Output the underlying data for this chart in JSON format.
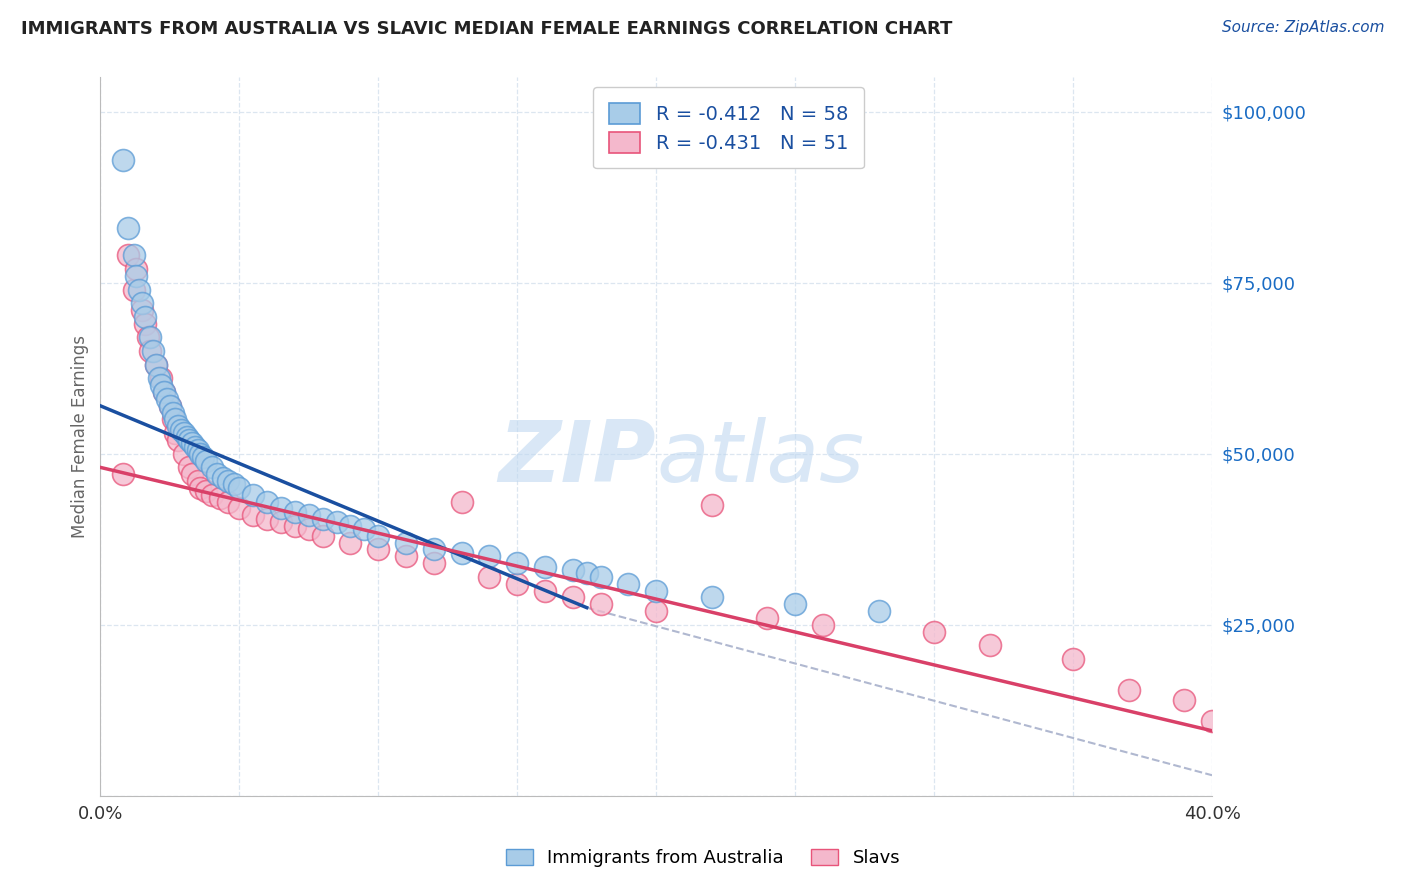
{
  "title": "IMMIGRANTS FROM AUSTRALIA VS SLAVIC MEDIAN FEMALE EARNINGS CORRELATION CHART",
  "source": "Source: ZipAtlas.com",
  "ylabel": "Median Female Earnings",
  "xlim": [
    0.0,
    0.4
  ],
  "ylim": [
    0,
    105000
  ],
  "xtick_vals": [
    0.0,
    0.05,
    0.1,
    0.15,
    0.2,
    0.25,
    0.3,
    0.35,
    0.4
  ],
  "xtick_labels": [
    "0.0%",
    "",
    "",
    "",
    "",
    "",
    "",
    "",
    "40.0%"
  ],
  "ytick_vals": [
    0,
    25000,
    50000,
    75000,
    100000
  ],
  "ytick_labels": [
    "",
    "$25,000",
    "$50,000",
    "$75,000",
    "$100,000"
  ],
  "blue_R": -0.412,
  "blue_N": 58,
  "pink_R": -0.431,
  "pink_N": 51,
  "blue_scatter_color": "#a8cce8",
  "pink_scatter_color": "#f4b8cc",
  "blue_edge_color": "#5b9bd5",
  "pink_edge_color": "#e8547a",
  "blue_line_color": "#1a4fa0",
  "pink_line_color": "#d94068",
  "dashed_color": "#b0b8d0",
  "watermark_color": "#c0d8f0",
  "background_color": "#ffffff",
  "grid_color": "#dce6f0",
  "title_color": "#222222",
  "source_color": "#1a4fa0",
  "ytick_color": "#1a6cc4",
  "blue_scatter_x": [
    0.008,
    0.01,
    0.012,
    0.013,
    0.014,
    0.015,
    0.016,
    0.018,
    0.019,
    0.02,
    0.021,
    0.022,
    0.023,
    0.024,
    0.025,
    0.026,
    0.027,
    0.028,
    0.029,
    0.03,
    0.031,
    0.032,
    0.033,
    0.034,
    0.035,
    0.036,
    0.037,
    0.038,
    0.04,
    0.042,
    0.044,
    0.046,
    0.048,
    0.05,
    0.055,
    0.06,
    0.065,
    0.07,
    0.075,
    0.08,
    0.085,
    0.09,
    0.095,
    0.1,
    0.11,
    0.12,
    0.13,
    0.14,
    0.15,
    0.16,
    0.17,
    0.175,
    0.18,
    0.19,
    0.2,
    0.22,
    0.25,
    0.28
  ],
  "blue_scatter_y": [
    93000,
    83000,
    79000,
    76000,
    74000,
    72000,
    70000,
    67000,
    65000,
    63000,
    61000,
    60000,
    59000,
    58000,
    57000,
    56000,
    55000,
    54000,
    53500,
    53000,
    52500,
    52000,
    51500,
    51000,
    50500,
    50000,
    49500,
    49000,
    48000,
    47000,
    46500,
    46000,
    45500,
    45000,
    44000,
    43000,
    42000,
    41500,
    41000,
    40500,
    40000,
    39500,
    39000,
    38000,
    37000,
    36000,
    35500,
    35000,
    34000,
    33500,
    33000,
    32500,
    32000,
    31000,
    30000,
    29000,
    28000,
    27000
  ],
  "pink_scatter_x": [
    0.008,
    0.01,
    0.012,
    0.013,
    0.015,
    0.016,
    0.017,
    0.018,
    0.02,
    0.022,
    0.023,
    0.025,
    0.026,
    0.027,
    0.028,
    0.03,
    0.032,
    0.033,
    0.035,
    0.036,
    0.038,
    0.04,
    0.043,
    0.046,
    0.05,
    0.055,
    0.06,
    0.065,
    0.07,
    0.075,
    0.08,
    0.09,
    0.1,
    0.11,
    0.12,
    0.13,
    0.14,
    0.15,
    0.16,
    0.17,
    0.18,
    0.2,
    0.22,
    0.24,
    0.26,
    0.3,
    0.32,
    0.35,
    0.37,
    0.39,
    0.4
  ],
  "pink_scatter_y": [
    47000,
    79000,
    74000,
    77000,
    71000,
    69000,
    67000,
    65000,
    63000,
    61000,
    59000,
    57000,
    55000,
    53000,
    52000,
    50000,
    48000,
    47000,
    46000,
    45000,
    44500,
    44000,
    43500,
    43000,
    42000,
    41000,
    40500,
    40000,
    39500,
    39000,
    38000,
    37000,
    36000,
    35000,
    34000,
    43000,
    32000,
    31000,
    30000,
    29000,
    28000,
    27000,
    42500,
    26000,
    25000,
    24000,
    22000,
    20000,
    15500,
    14000,
    11000
  ],
  "blue_line_x": [
    0.0,
    0.175
  ],
  "blue_line_y": [
    57000,
    27500
  ],
  "pink_line_x": [
    0.0,
    0.4
  ],
  "pink_line_y": [
    48000,
    9500
  ],
  "dashed_line_x": [
    0.175,
    0.4
  ],
  "dashed_line_y": [
    27500,
    3000
  ]
}
